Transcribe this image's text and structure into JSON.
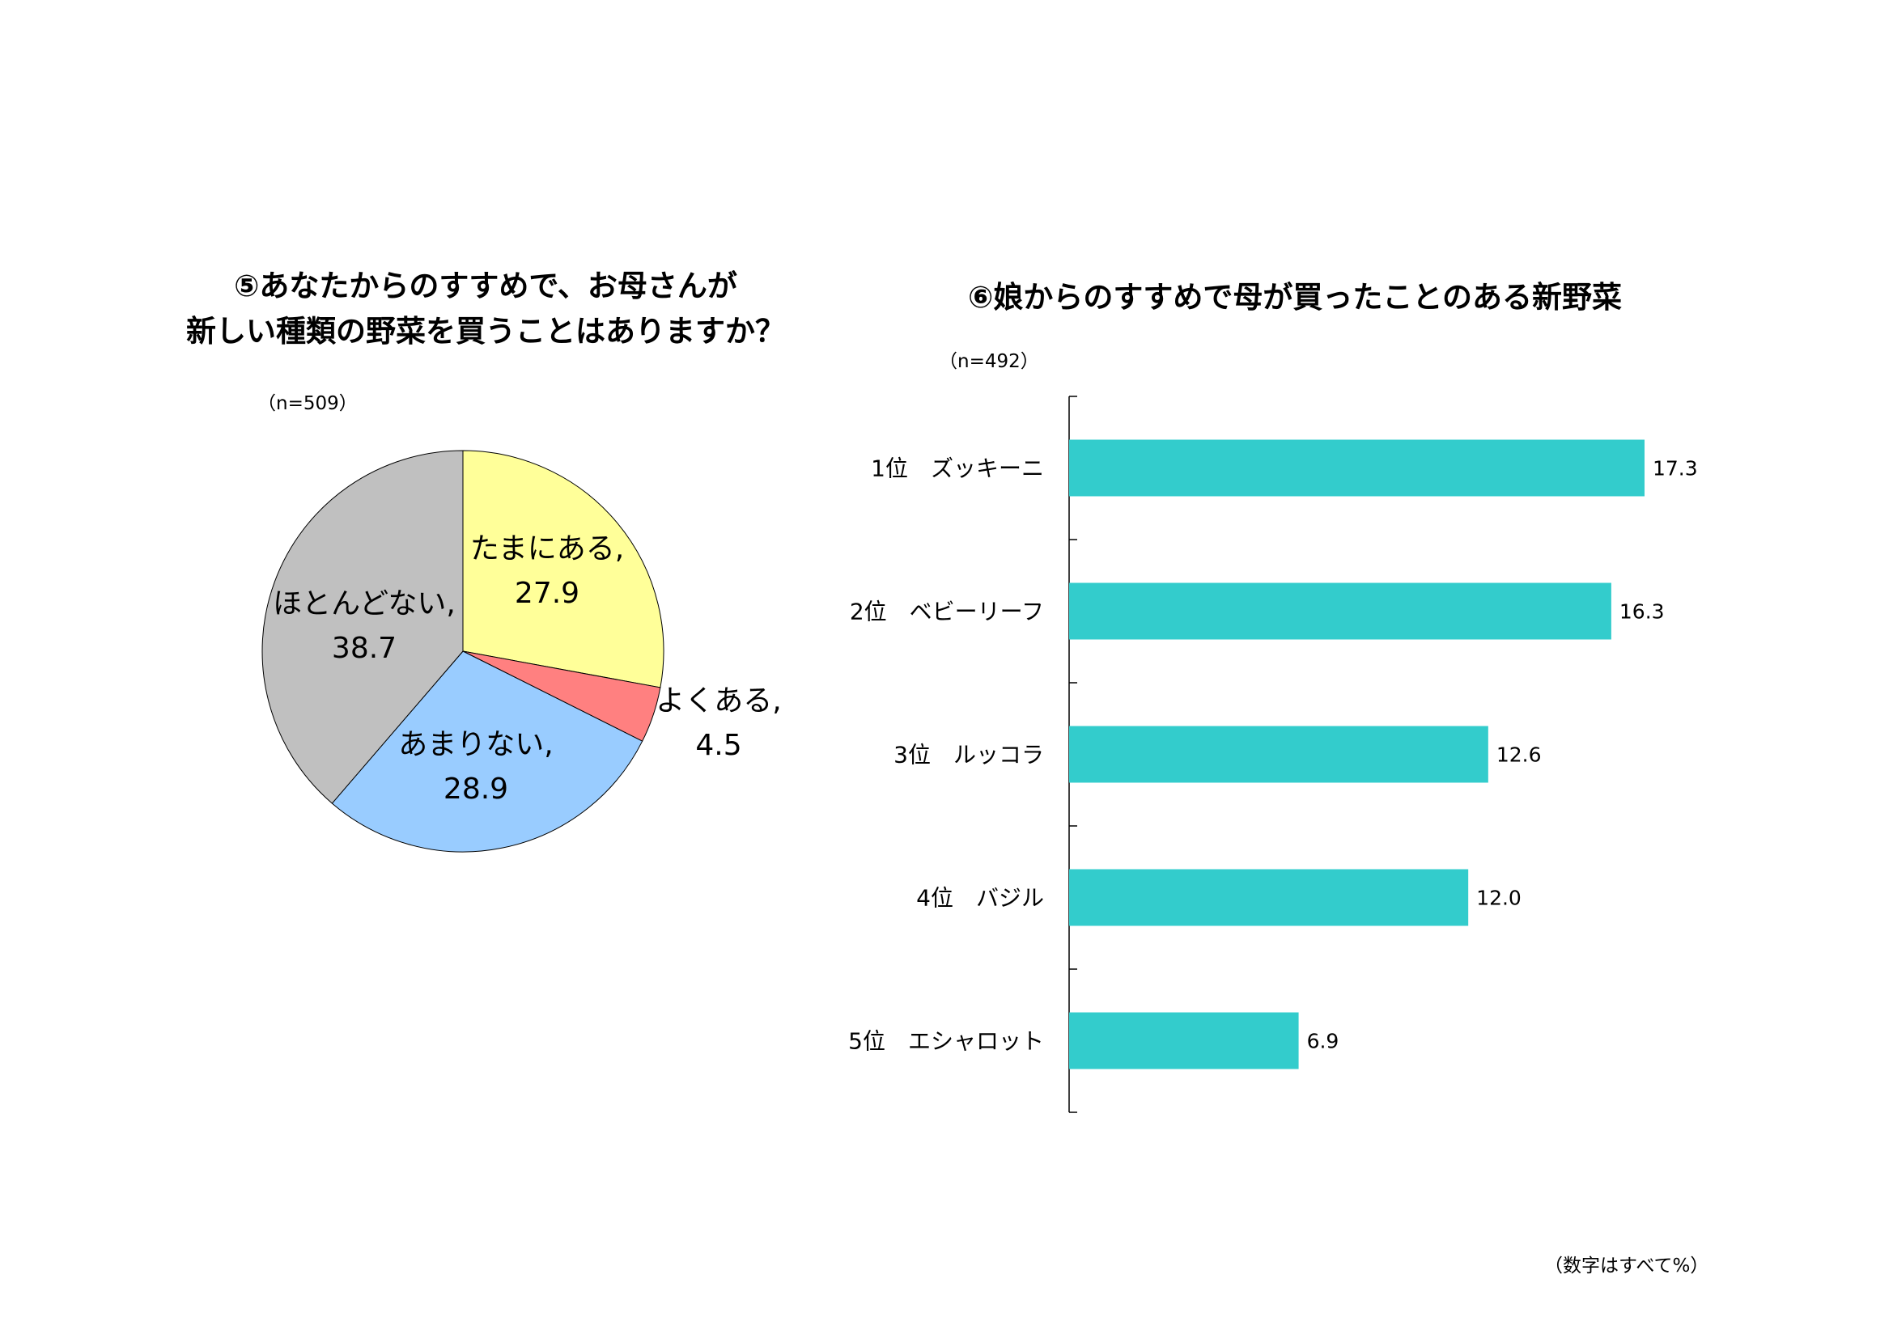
{
  "footnote": "（数字はすべて%）",
  "chart_data": [
    {
      "type": "pie",
      "title_lines": [
        "⑤あなたからのすすめで、お母さんが",
        "新しい種類の野菜を買うことはありますか？"
      ],
      "sample": "（n=509）",
      "slices": [
        {
          "label": "たまにある,",
          "value": 27.9,
          "value_text": "27.9",
          "color": "#FFFF99"
        },
        {
          "label": "よくある,",
          "value": 4.5,
          "value_text": "4.5",
          "color": "#FF8080"
        },
        {
          "label": "あまりない,",
          "value": 28.9,
          "value_text": "28.9",
          "color": "#99CCFF"
        },
        {
          "label": "ほとんどない,",
          "value": 38.7,
          "value_text": "38.7",
          "color": "#C0C0C0"
        }
      ]
    },
    {
      "type": "bar",
      "orientation": "horizontal",
      "title": "⑥娘からのすすめで母が買ったことのある新野菜",
      "sample": "（n=492）",
      "color": "#33CCCC",
      "xlim": [
        0,
        20
      ],
      "categories": [
        "1位　ズッキーニ",
        "2位　ベビーリーフ",
        "3位　ルッコラ",
        "4位　バジル",
        "5位　エシャロット"
      ],
      "values": [
        17.3,
        16.3,
        12.6,
        12.0,
        6.9
      ],
      "value_texts": [
        "17.3",
        "16.3",
        "12.6",
        "12.0",
        "6.9"
      ]
    }
  ]
}
